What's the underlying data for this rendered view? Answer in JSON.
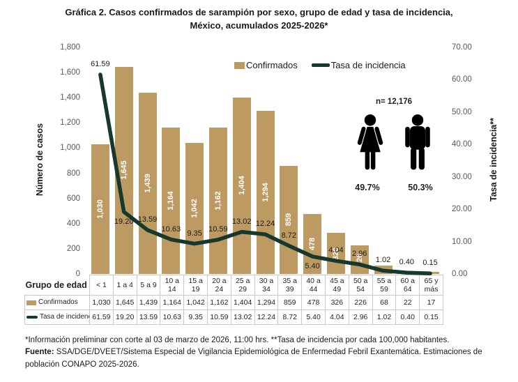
{
  "title": {
    "line1": "Gráfica 2. Casos confirmados  de sarampión por sexo, grupo de edad y tasa de incidencia,",
    "line2": "México, acumulados 2025-2026*"
  },
  "chart_data": {
    "type": "bar+line combo",
    "categories": [
      "< 1",
      "1 a 4",
      "5 a 9",
      "10 a 14",
      "15 a 19",
      "20 a 24",
      "25 a 29",
      "30 a 34",
      "35 a 39",
      "40 a 44",
      "45 a 49",
      "50 a 54",
      "55 a 59",
      "60 a 64",
      "65 y más"
    ],
    "series": [
      {
        "name": "Confirmados",
        "type": "bar",
        "axis": "left",
        "values": [
          1030,
          1645,
          1439,
          1164,
          1042,
          1162,
          1404,
          1294,
          859,
          478,
          326,
          226,
          68,
          22,
          17
        ],
        "labels": [
          "1,030",
          "1,645",
          "1,439",
          "1,164",
          "1,042",
          "1,162",
          "1,404",
          "1,294",
          "859",
          "478",
          "326",
          "226",
          "68",
          "22",
          "17"
        ],
        "bar_label_hidden_indices": [
          12,
          13,
          14
        ]
      },
      {
        "name": "Tasa de incidencia",
        "type": "line",
        "axis": "right",
        "values": [
          61.59,
          19.2,
          13.59,
          10.63,
          9.35,
          10.59,
          13.02,
          12.24,
          8.72,
          5.4,
          4.04,
          2.96,
          1.02,
          0.4,
          0.15
        ],
        "labels": [
          "61.59",
          "19.20",
          "13.59",
          "10.63",
          "9.35",
          "10.59",
          "13.02",
          "12.24",
          "8.72",
          "5.40",
          "4.04",
          "2.96",
          "1.02",
          "0.40",
          "0.15"
        ],
        "labels_below_indices": [
          1,
          9
        ]
      }
    ],
    "left_axis": {
      "title": "Número de casos",
      "min": 0,
      "max": 1800,
      "step": 200,
      "tick_labels": [
        "1,800",
        "1,600",
        "1,400",
        "1,200",
        "1,000",
        "800",
        "600",
        "400",
        "200",
        "0"
      ]
    },
    "right_axis": {
      "title": "Tasa de incidencia**",
      "min": 0,
      "max": 70,
      "step": 10,
      "tick_labels": [
        "70.00",
        "60.00",
        "50.00",
        "40.00",
        "30.00",
        "20.00",
        "10.00",
        "0.00"
      ]
    },
    "legend": [
      {
        "label": "Confirmados",
        "swatch": "bar"
      },
      {
        "label": "Tasa de incidencia",
        "swatch": "line"
      }
    ],
    "grid": false,
    "legend_position": "top-inside"
  },
  "annotation": {
    "n_label": "n= 12,176",
    "female_pct": "49.7%",
    "male_pct": "50.3%"
  },
  "table": {
    "corner_label": "Grupo de edad"
  },
  "footnotes": {
    "note": "*Información preliminar con corte al 03 de marzo de 2026, 11:00 hrs. **Tasa de incidencia por cada 100,000 habitantes.",
    "source_label": "Fuente:",
    "source_text": " SSA/DGE/DVEET/Sistema Especial de Vigilancia Epidemiológica de Enfermedad Febril Exantemática. Estimaciones de población CONAPO 2025-2026."
  },
  "colors": {
    "bar": "#BC9A62",
    "line": "#17382C",
    "tick_text": "#595959",
    "text": "#1F1F1F",
    "table_border": "#C9C9C9",
    "bar_label": "#FFFFFF",
    "icon": "#000000"
  }
}
